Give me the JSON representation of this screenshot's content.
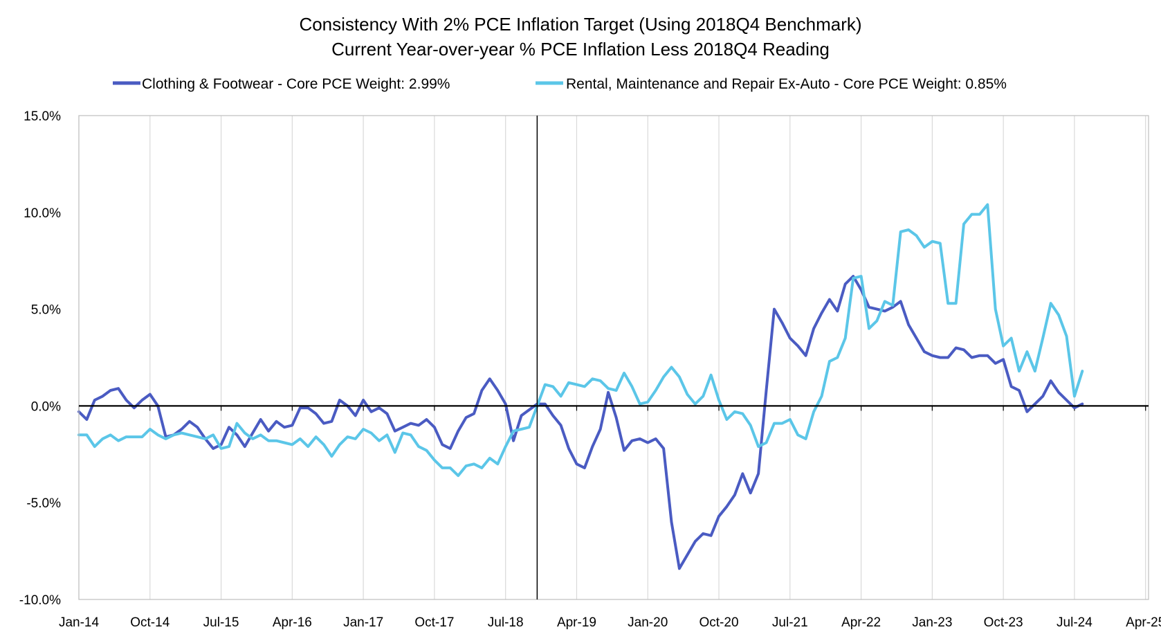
{
  "chart_data": {
    "type": "line",
    "title": "Consistency With 2% PCE Inflation Target (Using 2018Q4 Benchmark)",
    "subtitle": "Current Year-over-year % PCE Inflation Less 2018Q4 Reading",
    "xlabel": "",
    "ylabel": "",
    "ylim": [
      -10,
      15
    ],
    "yticks": [
      "15.0%",
      "10.0%",
      "5.0%",
      "0.0%",
      "-5.0%",
      "-10.0%"
    ],
    "xticks": [
      "Jan-14",
      "Oct-14",
      "Jul-15",
      "Apr-16",
      "Jan-17",
      "Oct-17",
      "Jul-18",
      "Apr-19",
      "Jan-20",
      "Oct-20",
      "Jul-21",
      "Apr-22",
      "Jan-23",
      "Oct-23",
      "Jul-24",
      "Apr-25"
    ],
    "x_start": "Jan-14",
    "x_months_total": 135,
    "benchmark_line_month": 58,
    "legend_position": "top",
    "series": [
      {
        "name": "Clothing & Footwear - Core PCE Weight: 2.99%",
        "color": "#4a5bc2",
        "values": [
          -0.3,
          -0.7,
          0.3,
          0.5,
          0.8,
          0.9,
          0.3,
          -0.1,
          0.3,
          0.6,
          0.0,
          -1.6,
          -1.5,
          -1.2,
          -0.8,
          -1.1,
          -1.7,
          -2.2,
          -2.0,
          -1.1,
          -1.5,
          -2.1,
          -1.4,
          -0.7,
          -1.3,
          -0.8,
          -1.1,
          -1.0,
          -0.1,
          -0.1,
          -0.4,
          -0.9,
          -0.8,
          0.3,
          0.0,
          -0.5,
          0.3,
          -0.3,
          -0.1,
          -0.4,
          -1.3,
          -1.1,
          -0.9,
          -1.0,
          -0.7,
          -1.1,
          -2.0,
          -2.2,
          -1.3,
          -0.6,
          -0.4,
          0.8,
          1.4,
          0.8,
          0.1,
          -1.8,
          -0.5,
          -0.2,
          0.1,
          0.1,
          -0.5,
          -1.0,
          -2.2,
          -3.0,
          -3.2,
          -2.1,
          -1.2,
          0.7,
          -0.6,
          -2.3,
          -1.8,
          -1.7,
          -1.9,
          -1.7,
          -2.2,
          -6.0,
          -8.4,
          -7.7,
          -7.0,
          -6.6,
          -6.7,
          -5.7,
          -5.2,
          -4.6,
          -3.5,
          -4.5,
          -3.5,
          0.8,
          5.0,
          4.3,
          3.5,
          3.1,
          2.6,
          4.0,
          4.8,
          5.5,
          4.9,
          6.3,
          6.7,
          6.0,
          5.1,
          5.0,
          4.9,
          5.1,
          5.4,
          4.2,
          3.5,
          2.8,
          2.6,
          2.5,
          2.5,
          3.0,
          2.9,
          2.5,
          2.6,
          2.6,
          2.2,
          2.4,
          1.0,
          0.8,
          -0.3,
          0.1,
          0.5,
          1.3,
          0.7,
          0.3,
          -0.1,
          0.1
        ]
      },
      {
        "name": "Rental, Maintenance and Repair Ex-Auto - Core PCE Weight: 0.85%",
        "color": "#5bc6e8",
        "values": [
          -1.5,
          -1.5,
          -2.1,
          -1.7,
          -1.5,
          -1.8,
          -1.6,
          -1.6,
          -1.6,
          -1.2,
          -1.5,
          -1.7,
          -1.5,
          -1.4,
          -1.5,
          -1.6,
          -1.7,
          -1.5,
          -2.2,
          -2.1,
          -0.9,
          -1.4,
          -1.7,
          -1.5,
          -1.8,
          -1.8,
          -1.9,
          -2.0,
          -1.7,
          -2.1,
          -1.6,
          -2.0,
          -2.6,
          -2.0,
          -1.6,
          -1.7,
          -1.2,
          -1.4,
          -1.8,
          -1.5,
          -2.4,
          -1.4,
          -1.5,
          -2.1,
          -2.3,
          -2.8,
          -3.2,
          -3.2,
          -3.6,
          -3.1,
          -3.0,
          -3.2,
          -2.7,
          -3.0,
          -2.1,
          -1.3,
          -1.2,
          -1.1,
          0.0,
          1.1,
          1.0,
          0.5,
          1.2,
          1.1,
          1.0,
          1.4,
          1.3,
          0.9,
          0.8,
          1.7,
          1.0,
          0.1,
          0.2,
          0.8,
          1.5,
          2.0,
          1.5,
          0.6,
          0.1,
          0.5,
          1.6,
          0.3,
          -0.7,
          -0.3,
          -0.4,
          -1.0,
          -2.1,
          -1.9,
          -0.9,
          -0.9,
          -0.7,
          -1.5,
          -1.7,
          -0.3,
          0.5,
          2.3,
          2.5,
          3.5,
          6.6,
          6.7,
          4.0,
          4.4,
          5.4,
          5.2,
          9.0,
          9.1,
          8.8,
          8.2,
          8.5,
          8.4,
          5.3,
          5.3,
          9.4,
          9.9,
          9.9,
          10.4,
          5.0,
          3.1,
          3.5,
          1.8,
          2.8,
          1.8,
          3.5,
          5.3,
          4.7,
          3.6,
          0.5,
          1.8
        ]
      }
    ]
  }
}
